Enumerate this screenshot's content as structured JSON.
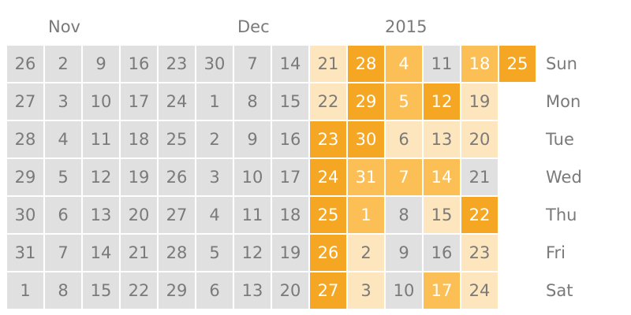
{
  "labels": {
    "nov": "Nov",
    "dec": "Dec",
    "year": "2015"
  },
  "days": [
    "Sun",
    "Mon",
    "Tue",
    "Wed",
    "Thu",
    "Fri",
    "Sat"
  ],
  "colors": {
    "none": "#e0e0e0",
    "light": "#fde6bd",
    "medium": "#fbbf56",
    "dark": "#f5a623",
    "text_muted": "#7a7a7a",
    "text_light": "#ffffff"
  },
  "weeks": [
    [
      {
        "d": "26",
        "l": 0
      },
      {
        "d": "27",
        "l": 0
      },
      {
        "d": "28",
        "l": 0
      },
      {
        "d": "29",
        "l": 0
      },
      {
        "d": "30",
        "l": 0
      },
      {
        "d": "31",
        "l": 0
      },
      {
        "d": "1",
        "l": 0
      }
    ],
    [
      {
        "d": "2",
        "l": 0
      },
      {
        "d": "3",
        "l": 0
      },
      {
        "d": "4",
        "l": 0
      },
      {
        "d": "5",
        "l": 0
      },
      {
        "d": "6",
        "l": 0
      },
      {
        "d": "7",
        "l": 0
      },
      {
        "d": "8",
        "l": 0
      }
    ],
    [
      {
        "d": "9",
        "l": 0
      },
      {
        "d": "10",
        "l": 0
      },
      {
        "d": "11",
        "l": 0
      },
      {
        "d": "12",
        "l": 0
      },
      {
        "d": "13",
        "l": 0
      },
      {
        "d": "14",
        "l": 0
      },
      {
        "d": "15",
        "l": 0
      }
    ],
    [
      {
        "d": "16",
        "l": 0
      },
      {
        "d": "17",
        "l": 0
      },
      {
        "d": "18",
        "l": 0
      },
      {
        "d": "19",
        "l": 0
      },
      {
        "d": "20",
        "l": 0
      },
      {
        "d": "21",
        "l": 0
      },
      {
        "d": "22",
        "l": 0
      }
    ],
    [
      {
        "d": "23",
        "l": 0
      },
      {
        "d": "24",
        "l": 0
      },
      {
        "d": "25",
        "l": 0
      },
      {
        "d": "26",
        "l": 0
      },
      {
        "d": "27",
        "l": 0
      },
      {
        "d": "28",
        "l": 0
      },
      {
        "d": "29",
        "l": 0
      }
    ],
    [
      {
        "d": "30",
        "l": 0
      },
      {
        "d": "1",
        "l": 0
      },
      {
        "d": "2",
        "l": 0
      },
      {
        "d": "3",
        "l": 0
      },
      {
        "d": "4",
        "l": 0
      },
      {
        "d": "5",
        "l": 0
      },
      {
        "d": "6",
        "l": 0
      }
    ],
    [
      {
        "d": "7",
        "l": 0
      },
      {
        "d": "8",
        "l": 0
      },
      {
        "d": "9",
        "l": 0
      },
      {
        "d": "10",
        "l": 0
      },
      {
        "d": "11",
        "l": 0
      },
      {
        "d": "12",
        "l": 0
      },
      {
        "d": "13",
        "l": 0
      }
    ],
    [
      {
        "d": "14",
        "l": 0
      },
      {
        "d": "15",
        "l": 0
      },
      {
        "d": "16",
        "l": 0
      },
      {
        "d": "17",
        "l": 0
      },
      {
        "d": "18",
        "l": 0
      },
      {
        "d": "19",
        "l": 0
      },
      {
        "d": "20",
        "l": 0
      }
    ],
    [
      {
        "d": "21",
        "l": 1
      },
      {
        "d": "22",
        "l": 1
      },
      {
        "d": "23",
        "l": 3
      },
      {
        "d": "24",
        "l": 3
      },
      {
        "d": "25",
        "l": 3
      },
      {
        "d": "26",
        "l": 3
      },
      {
        "d": "27",
        "l": 3
      }
    ],
    [
      {
        "d": "28",
        "l": 3
      },
      {
        "d": "29",
        "l": 3
      },
      {
        "d": "30",
        "l": 3
      },
      {
        "d": "31",
        "l": 2
      },
      {
        "d": "1",
        "l": 2
      },
      {
        "d": "2",
        "l": 1
      },
      {
        "d": "3",
        "l": 1
      }
    ],
    [
      {
        "d": "4",
        "l": 2
      },
      {
        "d": "5",
        "l": 2
      },
      {
        "d": "6",
        "l": 1
      },
      {
        "d": "7",
        "l": 2
      },
      {
        "d": "8",
        "l": 0
      },
      {
        "d": "9",
        "l": 0
      },
      {
        "d": "10",
        "l": 0
      }
    ],
    [
      {
        "d": "11",
        "l": 0
      },
      {
        "d": "12",
        "l": 3
      },
      {
        "d": "13",
        "l": 1
      },
      {
        "d": "14",
        "l": 2
      },
      {
        "d": "15",
        "l": 1
      },
      {
        "d": "16",
        "l": 0
      },
      {
        "d": "17",
        "l": 2
      }
    ],
    [
      {
        "d": "18",
        "l": 2
      },
      {
        "d": "19",
        "l": 1
      },
      {
        "d": "20",
        "l": 1
      },
      {
        "d": "21",
        "l": 0
      },
      {
        "d": "22",
        "l": 3
      },
      {
        "d": "23",
        "l": 1
      },
      {
        "d": "24",
        "l": 1
      }
    ],
    [
      {
        "d": "25",
        "l": 3
      }
    ]
  ]
}
